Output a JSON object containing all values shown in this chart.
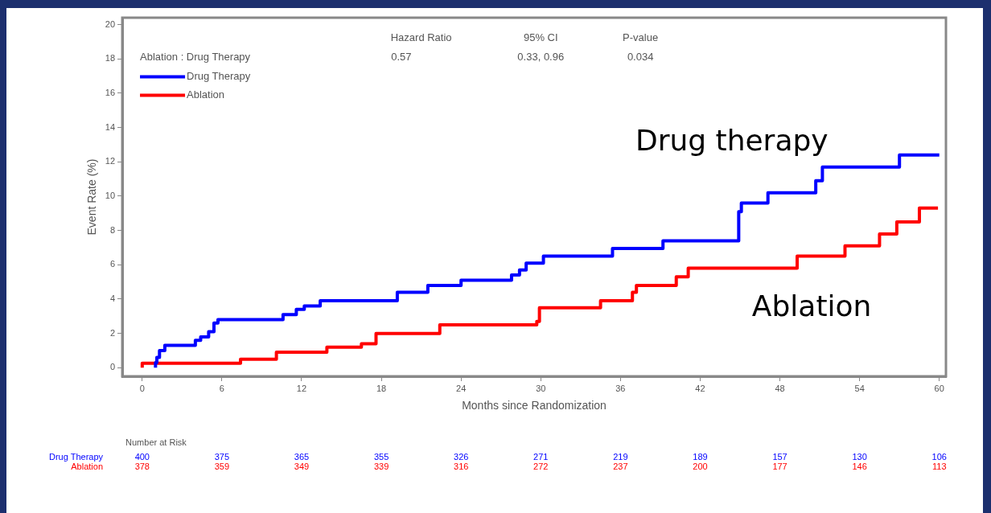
{
  "chart_data": {
    "type": "step",
    "xlabel": "Months since Randomization",
    "ylabel": "Event Rate (%)",
    "xlim": [
      -1.5,
      60.5
    ],
    "xticks": [
      0,
      6,
      12,
      18,
      24,
      30,
      36,
      42,
      48,
      54,
      60
    ],
    "ylim": [
      -0.5,
      20.4
    ],
    "yticks": [
      0,
      2,
      4,
      6,
      8,
      10,
      12,
      14,
      16,
      18,
      20
    ],
    "grid": false,
    "legend": "top left",
    "line_style": "solid",
    "marker": "none",
    "series": [
      {
        "name": "Drug Therapy",
        "color": "#0000ff",
        "x": [
          1,
          1.1,
          1.3,
          1.7,
          4.0,
          4.4,
          5.0,
          5.4,
          5.7,
          10.6,
          11.6,
          12.2,
          13.4,
          19.2,
          21.5,
          24.0,
          27.8,
          28.4,
          28.9,
          30.2,
          35.4,
          39.2,
          44.9,
          45.1,
          47.1,
          50.7,
          51.2,
          57.0,
          58.5,
          60
        ],
        "values": [
          0,
          0.3,
          0.6,
          1.0,
          1.3,
          1.6,
          1.8,
          2.1,
          2.6,
          2.8,
          3.1,
          3.4,
          3.6,
          3.9,
          4.4,
          4.8,
          5.1,
          5.4,
          5.7,
          6.1,
          6.5,
          6.95,
          7.4,
          9.1,
          9.6,
          10.2,
          10.9,
          11.7,
          12.4,
          12.4
        ]
      },
      {
        "name": "Ablation",
        "color": "#ff0000",
        "x": [
          0,
          7.4,
          10.1,
          13.9,
          16.5,
          17.6,
          22.4,
          29.7,
          29.9,
          34.5,
          36.9,
          37.2,
          40.2,
          41.1,
          49.3,
          52.9,
          55.5,
          56.8,
          58.5,
          59.9
        ],
        "values": [
          0,
          0.26,
          0.5,
          0.9,
          1.2,
          1.4,
          2.0,
          2.5,
          2.7,
          3.5,
          3.9,
          4.4,
          4.8,
          5.3,
          5.8,
          6.5,
          7.1,
          7.8,
          8.5,
          9.3
        ]
      }
    ],
    "annotations": [
      "Hazard Ratio",
      "95% CI",
      "P-value",
      "Ablation : Drug Therapy",
      "0.57",
      "0.33, 0.96",
      "0.034",
      "Drug therapy",
      "Ablation",
      "Number at Risk",
      "Drug Therapy",
      "Ablation",
      "400",
      "375",
      "365",
      "355",
      "326",
      "271",
      "219",
      "189",
      "157",
      "130",
      "106",
      "378",
      "359",
      "349",
      "339",
      "316",
      "272",
      "237",
      "200",
      "177",
      "146",
      "113"
    ]
  }
}
